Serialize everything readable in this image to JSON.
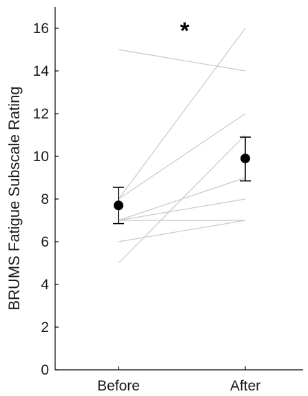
{
  "chart_data": {
    "type": "line",
    "categories": [
      "Before",
      "After"
    ],
    "ylabel": "BRUMS Fatigue Subscale Rating",
    "ylim": [
      0,
      17
    ],
    "yticks": [
      0,
      2,
      4,
      6,
      8,
      10,
      12,
      14,
      16
    ],
    "grid": false,
    "significance_marker": "*",
    "individual_lines": [
      {
        "values": [
          15,
          14
        ]
      },
      {
        "values": [
          8,
          16
        ]
      },
      {
        "values": [
          8,
          12
        ]
      },
      {
        "values": [
          7,
          9
        ]
      },
      {
        "values": [
          7,
          8
        ]
      },
      {
        "values": [
          7,
          7
        ]
      },
      {
        "values": [
          6,
          7
        ]
      },
      {
        "values": [
          5,
          11
        ]
      }
    ],
    "summary": {
      "means": [
        7.7,
        9.9
      ],
      "error_low": [
        6.85,
        8.85
      ],
      "error_high": [
        8.55,
        10.9
      ]
    },
    "colors": {
      "individual": "#c8c8c8",
      "summary": "#000000",
      "axis": "#000000"
    }
  }
}
